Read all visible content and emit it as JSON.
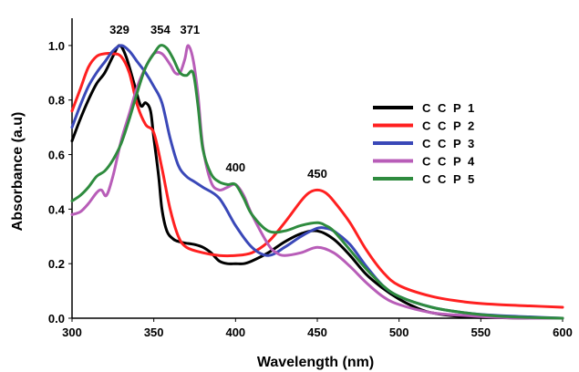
{
  "chart_data": {
    "type": "line",
    "title": "",
    "xlabel": "Wavelength (nm)",
    "ylabel": "Absorbance (a.u)",
    "xlim": [
      300,
      600
    ],
    "ylim": [
      0.0,
      1.1
    ],
    "xticks": [
      "300",
      "350",
      "400",
      "450",
      "500",
      "550",
      "600"
    ],
    "yticks": [
      "0.0",
      "0.2",
      "0.4",
      "0.6",
      "0.8",
      "1.0"
    ],
    "grid": false,
    "legend_position": "right",
    "annotations": [
      {
        "text": "329",
        "x": 329,
        "y": 1.0
      },
      {
        "text": "354",
        "x": 354,
        "y": 1.0
      },
      {
        "text": "371",
        "x": 371,
        "y": 1.0
      },
      {
        "text": "400",
        "x": 400,
        "y": 0.5
      },
      {
        "text": "450",
        "x": 450,
        "y": 0.47
      }
    ],
    "series": [
      {
        "name": "C C P 1",
        "color": "#000000",
        "x": [
          300,
          305,
          310,
          315,
          320,
          325,
          329,
          333,
          338,
          342,
          345,
          348,
          350,
          353,
          355,
          358,
          362,
          366,
          370,
          375,
          380,
          385,
          390,
          395,
          400,
          405,
          410,
          420,
          430,
          440,
          450,
          460,
          470,
          480,
          490,
          500,
          510,
          520,
          540,
          560,
          580,
          600
        ],
        "y": [
          0.65,
          0.73,
          0.8,
          0.86,
          0.9,
          0.96,
          1.0,
          0.96,
          0.86,
          0.78,
          0.79,
          0.76,
          0.66,
          0.52,
          0.4,
          0.32,
          0.29,
          0.28,
          0.275,
          0.27,
          0.26,
          0.24,
          0.21,
          0.2,
          0.2,
          0.2,
          0.21,
          0.24,
          0.28,
          0.31,
          0.32,
          0.29,
          0.23,
          0.16,
          0.11,
          0.07,
          0.04,
          0.02,
          0.005,
          0.002,
          0.0,
          0.0
        ]
      },
      {
        "name": "C C P 2",
        "color": "#ff2020",
        "x": [
          300,
          305,
          310,
          315,
          320,
          325,
          330,
          335,
          340,
          345,
          350,
          355,
          360,
          365,
          370,
          380,
          390,
          400,
          410,
          420,
          430,
          440,
          445,
          450,
          455,
          460,
          470,
          480,
          490,
          500,
          520,
          540,
          560,
          580,
          600
        ],
        "y": [
          0.76,
          0.84,
          0.92,
          0.96,
          0.97,
          0.97,
          0.96,
          0.9,
          0.78,
          0.71,
          0.68,
          0.55,
          0.4,
          0.3,
          0.26,
          0.24,
          0.23,
          0.23,
          0.24,
          0.28,
          0.35,
          0.43,
          0.46,
          0.47,
          0.46,
          0.43,
          0.35,
          0.25,
          0.17,
          0.12,
          0.08,
          0.06,
          0.05,
          0.045,
          0.04
        ]
      },
      {
        "name": "C C P 3",
        "color": "#3a48b8",
        "x": [
          300,
          305,
          310,
          315,
          320,
          325,
          330,
          335,
          340,
          345,
          350,
          355,
          360,
          365,
          370,
          375,
          380,
          390,
          400,
          410,
          420,
          430,
          440,
          450,
          455,
          460,
          470,
          480,
          490,
          500,
          520,
          540,
          560,
          580,
          600
        ],
        "y": [
          0.7,
          0.78,
          0.85,
          0.9,
          0.94,
          0.98,
          1.0,
          0.98,
          0.94,
          0.9,
          0.85,
          0.79,
          0.66,
          0.56,
          0.52,
          0.5,
          0.48,
          0.44,
          0.34,
          0.26,
          0.23,
          0.26,
          0.3,
          0.33,
          0.33,
          0.32,
          0.27,
          0.19,
          0.12,
          0.08,
          0.04,
          0.02,
          0.01,
          0.005,
          0.0
        ]
      },
      {
        "name": "C C P 4",
        "color": "#b85db8",
        "x": [
          300,
          305,
          310,
          315,
          318,
          321,
          325,
          330,
          335,
          340,
          345,
          350,
          355,
          360,
          363,
          366,
          369,
          371,
          374,
          377,
          380,
          385,
          390,
          395,
          400,
          405,
          410,
          420,
          425,
          430,
          440,
          450,
          460,
          470,
          480,
          490,
          500,
          520,
          540,
          560,
          580,
          600
        ],
        "y": [
          0.38,
          0.39,
          0.42,
          0.46,
          0.47,
          0.45,
          0.52,
          0.65,
          0.75,
          0.85,
          0.92,
          0.97,
          0.97,
          0.93,
          0.9,
          0.9,
          0.95,
          1.0,
          0.95,
          0.82,
          0.63,
          0.5,
          0.47,
          0.48,
          0.49,
          0.45,
          0.38,
          0.27,
          0.24,
          0.23,
          0.24,
          0.26,
          0.24,
          0.19,
          0.13,
          0.08,
          0.05,
          0.02,
          0.01,
          0.003,
          0.0,
          0.0
        ]
      },
      {
        "name": "C C P 5",
        "color": "#2e8b3e",
        "x": [
          300,
          305,
          310,
          315,
          320,
          325,
          330,
          335,
          340,
          345,
          350,
          354,
          358,
          362,
          366,
          370,
          374,
          377,
          380,
          385,
          390,
          395,
          400,
          405,
          410,
          420,
          430,
          440,
          450,
          455,
          460,
          470,
          480,
          490,
          500,
          520,
          540,
          560,
          580,
          600
        ],
        "y": [
          0.43,
          0.45,
          0.48,
          0.52,
          0.54,
          0.58,
          0.64,
          0.73,
          0.83,
          0.92,
          0.97,
          1.0,
          0.99,
          0.95,
          0.9,
          0.89,
          0.9,
          0.78,
          0.62,
          0.53,
          0.5,
          0.49,
          0.49,
          0.44,
          0.38,
          0.32,
          0.32,
          0.34,
          0.35,
          0.34,
          0.32,
          0.25,
          0.18,
          0.12,
          0.08,
          0.04,
          0.02,
          0.008,
          0.003,
          0.0
        ]
      }
    ]
  }
}
